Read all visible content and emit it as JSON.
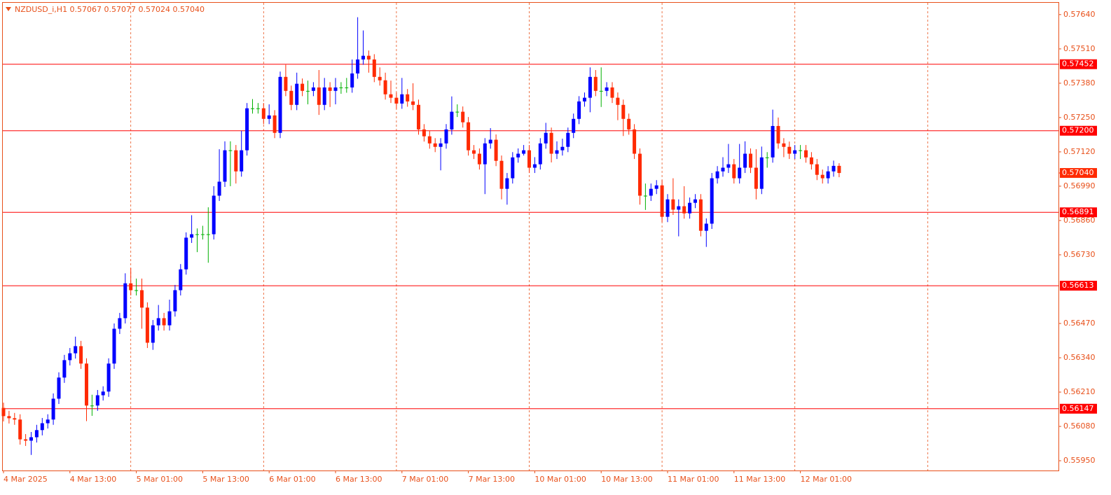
{
  "chart_data": {
    "type": "candlestick",
    "title": "NZDUSD_i,H1  0.57067 0.57077 0.57024 0.57040",
    "up_color": "#0000ff",
    "down_color": "#ff2a00",
    "doji_color": "#00b000",
    "level_color": "#ff0000",
    "ylim": [
      0.55913,
      0.57682
    ],
    "yticks": [
      {
        "value": 0.5764,
        "label": "0.57640"
      },
      {
        "value": 0.5751,
        "label": "0.57510"
      },
      {
        "value": 0.5738,
        "label": "0.57380"
      },
      {
        "value": 0.5725,
        "label": "0.57250"
      },
      {
        "value": 0.5712,
        "label": "0.57120"
      },
      {
        "value": 0.5699,
        "label": "0.56990"
      },
      {
        "value": 0.5686,
        "label": "0.56860"
      },
      {
        "value": 0.5673,
        "label": "0.56730"
      },
      {
        "value": 0.5647,
        "label": "0.56470"
      },
      {
        "value": 0.5634,
        "label": "0.56340"
      },
      {
        "value": 0.5621,
        "label": "0.56210"
      },
      {
        "value": 0.5608,
        "label": "0.56080"
      },
      {
        "value": 0.5595,
        "label": "0.55950"
      }
    ],
    "levels": [
      0.57452,
      {
        "value": 0.572,
        "label": "0.57200"
      },
      0.56891,
      0.56613,
      0.56147
    ],
    "current_price": {
      "value": 0.5704,
      "label": "0.57040"
    },
    "categories": [
      "4 Mar 2025",
      null,
      null,
      null,
      null,
      null,
      null,
      null,
      null,
      null,
      null,
      null,
      "4 Mar 13:00",
      null,
      null,
      null,
      null,
      null,
      null,
      null,
      null,
      null,
      null,
      null,
      "5 Mar 01:00",
      null,
      null,
      null,
      null,
      null,
      null,
      null,
      null,
      null,
      null,
      null,
      "5 Mar 13:00",
      null,
      null,
      null,
      null,
      null,
      null,
      null,
      null,
      null,
      null,
      null,
      "6 Mar 01:00",
      null,
      null,
      null,
      null,
      null,
      null,
      null,
      null,
      null,
      null,
      null,
      "6 Mar 13:00",
      null,
      null,
      null,
      null,
      null,
      null,
      null,
      null,
      null,
      null,
      null,
      "7 Mar 01:00",
      null,
      null,
      null,
      null,
      null,
      null,
      null,
      null,
      null,
      null,
      null,
      "7 Mar 13:00",
      null,
      null,
      null,
      null,
      null,
      null,
      null,
      null,
      null,
      null,
      null,
      "10 Mar 01:00",
      null,
      null,
      null,
      null,
      null,
      null,
      null,
      null,
      null,
      null,
      null,
      "10 Mar 13:00",
      null,
      null,
      null,
      null,
      null,
      null,
      null,
      null,
      null,
      null,
      null,
      "11 Mar 01:00",
      null,
      null,
      null,
      null,
      null,
      null,
      null,
      null,
      null,
      null,
      null,
      "11 Mar 13:00",
      null,
      null,
      null,
      null,
      null,
      null,
      null,
      null,
      null,
      null,
      null,
      "12 Mar 01:00",
      null,
      null,
      null,
      null,
      null,
      null,
      null
    ],
    "open": [
      0.5615,
      0.56119,
      0.56111,
      0.56106,
      0.56031,
      0.56026,
      0.56039,
      0.56066,
      0.56092,
      0.56106,
      0.56185,
      0.56265,
      0.56331,
      0.56357,
      0.56384,
      0.56318,
      0.56159,
      0.56159,
      0.56198,
      0.56212,
      0.56318,
      0.5645,
      0.5649,
      0.56622,
      0.56596,
      0.56596,
      0.5653,
      0.56397,
      0.56463,
      0.5649,
      0.56463,
      0.56516,
      0.56596,
      0.56675,
      0.56795,
      0.56808,
      0.56808,
      0.56808,
      0.56808,
      0.56954,
      0.57007,
      0.57126,
      0.57126,
      0.57046,
      0.57126,
      0.57285,
      0.57285,
      0.57285,
      0.57245,
      0.57258,
      0.57192,
      0.57404,
      0.57351,
      0.57298,
      0.57378,
      0.57351,
      0.57351,
      0.57364,
      0.57298,
      0.57364,
      0.57351,
      0.57364,
      0.57364,
      0.57364,
      0.57417,
      0.5747,
      0.57484,
      0.5747,
      0.57404,
      0.57391,
      0.57338,
      0.57325,
      0.57303,
      0.57338,
      0.57311,
      0.57298,
      0.57205,
      0.57179,
      0.57152,
      0.57139,
      0.57152,
      0.57205,
      0.57272,
      0.57272,
      0.57232,
      0.57126,
      0.57113,
      0.57073,
      0.57152,
      0.57166,
      0.57086,
      0.5698,
      0.5702,
      0.57099,
      0.57113,
      0.57126,
      0.5706,
      0.57073,
      0.57152,
      0.57192,
      0.57113,
      0.57126,
      0.57139,
      0.57192,
      0.57245,
      0.57311,
      0.57325,
      0.57404,
      0.57351,
      0.57351,
      0.57364,
      0.57325,
      0.57298,
      0.57245,
      0.57205,
      0.57113,
      0.56954,
      0.56954,
      0.5698,
      0.56993,
      0.56874,
      0.5694,
      0.56901,
      0.56914,
      0.56887,
      0.56927,
      0.5694,
      0.56821,
      0.56848,
      0.5702,
      0.57046,
      0.5706,
      0.57073,
      0.5702,
      0.5706,
      0.57113,
      0.5706,
      0.5698,
      0.57099,
      0.57099,
      0.57218,
      0.57152,
      0.57139,
      0.57113,
      0.57126,
      0.57126,
      0.57099,
      0.57073,
      0.57033,
      0.5702,
      0.57046,
      0.57067
    ],
    "high": [
      0.5617,
      0.56139,
      0.56131,
      0.56126,
      0.56051,
      0.56059,
      0.56086,
      0.56112,
      0.56126,
      0.56205,
      0.56285,
      0.56351,
      0.56377,
      0.5642,
      0.56404,
      0.56338,
      0.562,
      0.56218,
      0.56232,
      0.56338,
      0.5647,
      0.5651,
      0.5666,
      0.5668,
      0.5664,
      0.5664,
      0.5655,
      0.56483,
      0.5654,
      0.5651,
      0.5656,
      0.56616,
      0.56695,
      0.56815,
      0.5688,
      0.5683,
      0.5684,
      0.5691,
      0.5699,
      0.5713,
      0.5716,
      0.5716,
      0.57146,
      0.572,
      0.57305,
      0.5732,
      0.57305,
      0.57305,
      0.573,
      0.57278,
      0.57424,
      0.5745,
      0.57371,
      0.5742,
      0.57398,
      0.5739,
      0.57384,
      0.5743,
      0.574,
      0.57384,
      0.574,
      0.57384,
      0.574,
      0.5747,
      0.5763,
      0.5758,
      0.57504,
      0.5749,
      0.5744,
      0.5742,
      0.5739,
      0.57345,
      0.574,
      0.57358,
      0.5738,
      0.57318,
      0.57225,
      0.57199,
      0.57172,
      0.57172,
      0.57225,
      0.5733,
      0.573,
      0.57292,
      0.57252,
      0.57146,
      0.57133,
      0.57172,
      0.5721,
      0.57186,
      0.57106,
      0.5704,
      0.57119,
      0.57133,
      0.57146,
      0.57146,
      0.571,
      0.57172,
      0.5723,
      0.57212,
      0.5716,
      0.5717,
      0.57212,
      0.57265,
      0.57331,
      0.57345,
      0.5744,
      0.5743,
      0.5744,
      0.57384,
      0.57384,
      0.57345,
      0.57318,
      0.57265,
      0.57225,
      0.57133,
      0.57,
      0.57,
      0.57013,
      0.57013,
      0.5696,
      0.5702,
      0.5694,
      0.5699,
      0.56947,
      0.5696,
      0.5696,
      0.56868,
      0.5704,
      0.57066,
      0.571,
      0.5715,
      0.57093,
      0.5715,
      0.5716,
      0.57133,
      0.5713,
      0.5714,
      0.57119,
      0.5728,
      0.5725,
      0.57172,
      0.57159,
      0.57146,
      0.57146,
      0.57146,
      0.57119,
      0.57093,
      0.57053,
      0.57066,
      0.57087,
      0.57077
    ],
    "low": [
      0.56099,
      0.56091,
      0.56086,
      0.56011,
      0.56006,
      0.55972,
      0.56019,
      0.56046,
      0.56072,
      0.56086,
      0.56165,
      0.56245,
      0.56311,
      0.56337,
      0.56298,
      0.561,
      0.5612,
      0.56139,
      0.56178,
      0.56192,
      0.56298,
      0.5643,
      0.5647,
      0.56576,
      0.56576,
      0.5645,
      0.56377,
      0.5637,
      0.56443,
      0.56443,
      0.56443,
      0.56496,
      0.56576,
      0.56655,
      0.56775,
      0.5674,
      0.56788,
      0.567,
      0.56788,
      0.56934,
      0.56987,
      0.5699,
      0.57,
      0.57026,
      0.57106,
      0.57265,
      0.57265,
      0.57225,
      0.57225,
      0.57172,
      0.57172,
      0.57331,
      0.57278,
      0.57278,
      0.57331,
      0.573,
      0.57331,
      0.5726,
      0.57278,
      0.5729,
      0.573,
      0.5734,
      0.57344,
      0.57344,
      0.57397,
      0.5745,
      0.5742,
      0.57384,
      0.57371,
      0.57318,
      0.57305,
      0.57283,
      0.57283,
      0.57291,
      0.57278,
      0.57185,
      0.57159,
      0.57132,
      0.57119,
      0.5705,
      0.57132,
      0.57185,
      0.57252,
      0.57212,
      0.57106,
      0.57093,
      0.57053,
      0.5696,
      0.57132,
      0.57066,
      0.5694,
      0.5692,
      0.57,
      0.57079,
      0.57106,
      0.5704,
      0.5704,
      0.57053,
      0.57132,
      0.5708,
      0.57093,
      0.57106,
      0.57119,
      0.57172,
      0.57225,
      0.57291,
      0.5727,
      0.57331,
      0.5729,
      0.57331,
      0.57305,
      0.5724,
      0.5718,
      0.57185,
      0.57093,
      0.5692,
      0.569,
      0.56934,
      0.5696,
      0.56854,
      0.56854,
      0.56881,
      0.568,
      0.56867,
      0.56867,
      0.56907,
      0.568,
      0.5676,
      0.56828,
      0.57,
      0.57026,
      0.5704,
      0.57,
      0.57,
      0.5704,
      0.5704,
      0.5694,
      0.5696,
      0.5706,
      0.57079,
      0.57132,
      0.571,
      0.57093,
      0.57093,
      0.57093,
      0.57079,
      0.57053,
      0.57013,
      0.57,
      0.57,
      0.57026,
      0.57024
    ],
    "close": [
      0.56119,
      0.56111,
      0.56106,
      0.56031,
      0.56026,
      0.56039,
      0.56066,
      0.56092,
      0.56106,
      0.56185,
      0.56265,
      0.56331,
      0.56357,
      0.56384,
      0.56318,
      0.56159,
      0.56159,
      0.56198,
      0.56212,
      0.56318,
      0.5645,
      0.5649,
      0.56622,
      0.56596,
      0.56596,
      0.5653,
      0.56397,
      0.56463,
      0.5649,
      0.56463,
      0.56516,
      0.56596,
      0.56675,
      0.56795,
      0.56808,
      0.56808,
      0.56808,
      0.56808,
      0.56954,
      0.57007,
      0.57126,
      0.57126,
      0.57046,
      0.57126,
      0.57285,
      0.57285,
      0.57285,
      0.57245,
      0.57258,
      0.57192,
      0.57404,
      0.57351,
      0.57298,
      0.57378,
      0.57351,
      0.57351,
      0.57364,
      0.57298,
      0.57364,
      0.57351,
      0.57364,
      0.57364,
      0.57364,
      0.57417,
      0.5747,
      0.57484,
      0.5747,
      0.57404,
      0.57391,
      0.57338,
      0.57325,
      0.57303,
      0.57338,
      0.57311,
      0.57298,
      0.57205,
      0.57179,
      0.57152,
      0.57139,
      0.57152,
      0.57205,
      0.57272,
      0.57272,
      0.57232,
      0.57126,
      0.57113,
      0.57073,
      0.57152,
      0.57166,
      0.57086,
      0.5698,
      0.5702,
      0.57099,
      0.57113,
      0.57126,
      0.5706,
      0.57073,
      0.57152,
      0.57192,
      0.57113,
      0.57126,
      0.57139,
      0.57192,
      0.57245,
      0.57311,
      0.57325,
      0.57404,
      0.57351,
      0.57351,
      0.57364,
      0.57325,
      0.57298,
      0.57245,
      0.57205,
      0.57113,
      0.56954,
      0.56954,
      0.5698,
      0.56993,
      0.56874,
      0.5694,
      0.56901,
      0.56914,
      0.56887,
      0.56927,
      0.5694,
      0.56821,
      0.56848,
      0.5702,
      0.57046,
      0.5706,
      0.57073,
      0.5702,
      0.5706,
      0.57113,
      0.5706,
      0.5698,
      0.57099,
      0.57099,
      0.57218,
      0.57152,
      0.57139,
      0.57113,
      0.57126,
      0.57126,
      0.57099,
      0.57073,
      0.57033,
      0.5702,
      0.57046,
      0.57067,
      0.5704
    ]
  }
}
